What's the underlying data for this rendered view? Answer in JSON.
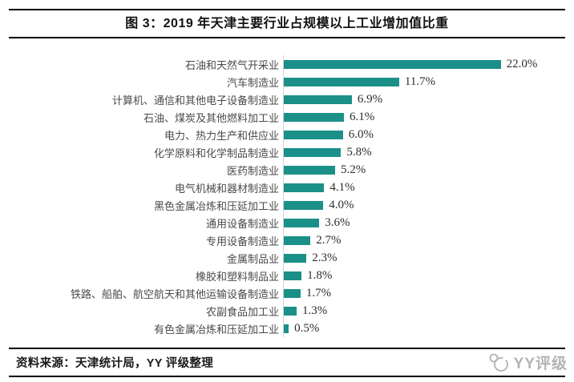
{
  "header": {
    "title": "图 3：2019 年天津主要行业占规模以上工业增加值比重"
  },
  "chart_data": {
    "type": "bar",
    "orientation": "horizontal",
    "title": "图 3：2019 年天津主要行业占规模以上工业增加值比重",
    "xlabel": "",
    "ylabel": "",
    "xlim": [
      0,
      29
    ],
    "grid": false,
    "legend": false,
    "bar_color": "#1A9089",
    "axis_line_color": "#d4d4d4",
    "categories": [
      "石油和天然气开采业",
      "汽车制造业",
      "计算机、通信和其他电子设备制造业",
      "石油、煤炭及其他燃料加工业",
      "电力、热力生产和供应业",
      "化学原料和化学制品制造业",
      "医药制造业",
      "电气机械和器材制造业",
      "黑色金属冶炼和压延加工业",
      "通用设备制造业",
      "专用设备制造业",
      "金属制品业",
      "橡胶和塑料制品业",
      "铁路、船舶、航空航天和其他运输设备制造业",
      "农副食品加工业",
      "有色金属冶炼和压延加工业"
    ],
    "values": [
      22.0,
      11.7,
      6.9,
      6.1,
      6.0,
      5.8,
      5.2,
      4.1,
      4.0,
      3.6,
      2.7,
      2.3,
      1.8,
      1.7,
      1.3,
      0.5
    ],
    "value_labels": [
      "22.0%",
      "11.7%",
      "6.9%",
      "6.1%",
      "6.0%",
      "5.8%",
      "5.2%",
      "4.1%",
      "4.0%",
      "3.6%",
      "2.7%",
      "2.3%",
      "1.8%",
      "1.7%",
      "1.3%",
      "0.5%"
    ]
  },
  "footer": {
    "source": "资料来源：天津统计局，YY 评级整理",
    "logo_text": "YY评级"
  }
}
